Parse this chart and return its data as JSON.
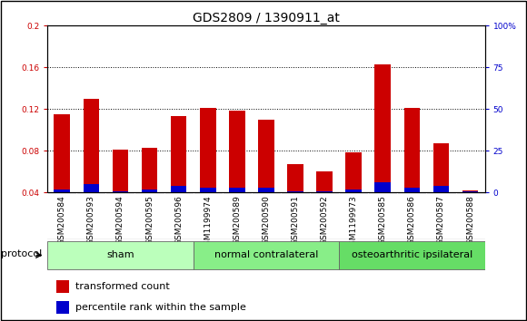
{
  "title": "GDS2809 / 1390911_at",
  "samples": [
    "GSM200584",
    "GSM200593",
    "GSM200594",
    "GSM200595",
    "GSM200596",
    "GSM1199974",
    "GSM200589",
    "GSM200590",
    "GSM200591",
    "GSM200592",
    "GSM1199973",
    "GSM200585",
    "GSM200586",
    "GSM200587",
    "GSM200588"
  ],
  "red_values": [
    0.115,
    0.13,
    0.081,
    0.083,
    0.113,
    0.121,
    0.119,
    0.11,
    0.067,
    0.06,
    0.079,
    0.163,
    0.121,
    0.087,
    0.042
  ],
  "blue_percentile": [
    2,
    5,
    1,
    2,
    4,
    3,
    3,
    3,
    1,
    1,
    2,
    6,
    3,
    4,
    1
  ],
  "groups": [
    {
      "label": "sham",
      "start": 0,
      "end": 4,
      "color": "#bbffbb"
    },
    {
      "label": "normal contralateral",
      "start": 5,
      "end": 9,
      "color": "#88ee88"
    },
    {
      "label": "osteoarthritic ipsilateral",
      "start": 10,
      "end": 14,
      "color": "#66dd66"
    }
  ],
  "ylim_left": [
    0.04,
    0.2
  ],
  "ylim_right": [
    0,
    100
  ],
  "yticks_left": [
    0.04,
    0.08,
    0.12,
    0.16,
    0.2
  ],
  "yticks_right": [
    0,
    25,
    50,
    75,
    100
  ],
  "ytick_labels_right": [
    "0",
    "25",
    "50",
    "75",
    "100%"
  ],
  "red_color": "#cc0000",
  "blue_color": "#0000cc",
  "background_color": "#ffffff",
  "plot_bg_color": "#ffffff",
  "title_fontsize": 10,
  "tick_fontsize": 6.5,
  "label_fontsize": 8,
  "group_label_fontsize": 8,
  "protocol_label": "protocol",
  "legend_items": [
    "transformed count",
    "percentile rank within the sample"
  ]
}
